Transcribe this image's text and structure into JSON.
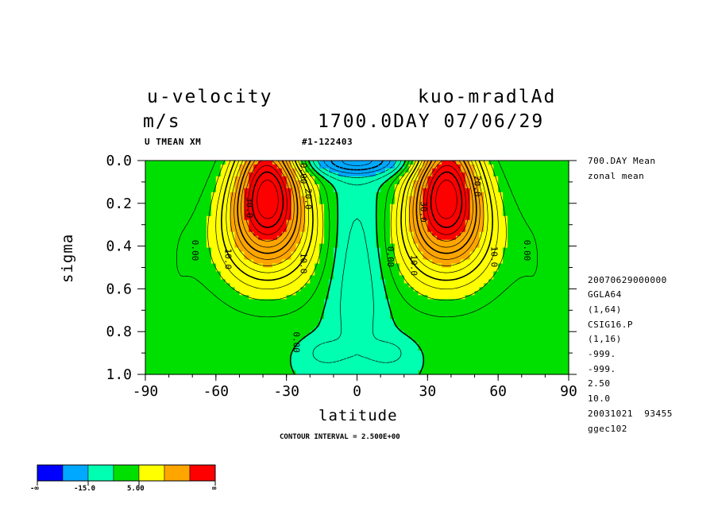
{
  "header": {
    "title_left": "u-velocity",
    "title_right": "kuo-mradlAd",
    "units": "m/s",
    "run_info": "1700.0DAY 07/06/29",
    "var_code": "U TMEAN XM",
    "run_code": "#1-122403"
  },
  "side_info": {
    "lines_top": [
      "700.DAY Mean",
      "zonal mean"
    ],
    "lines_bottom": [
      "20070629000000",
      "GGLA64",
      "(1,64)",
      "CSIG16.P",
      "(1,16)",
      "-999.",
      "-999.",
      "2.50",
      "10.0",
      "20031021  93455",
      "ggec102"
    ]
  },
  "contour_note": "CONTOUR INTERVAL = 2.500E+00",
  "legend": {
    "labels": [
      "-∞",
      "-15.0",
      "5.00",
      "∞"
    ],
    "colors": [
      "#0000ff",
      "#00a8ff",
      "#00ffb0",
      "#00e000",
      "#ffff00",
      "#ffa500",
      "#ff0000"
    ]
  },
  "chart_data": {
    "type": "heatmap",
    "title": "u-velocity",
    "xlabel": "latitude",
    "ylabel": "sigma",
    "xlim": [
      -90,
      90
    ],
    "ylim": [
      1.0,
      0.0
    ],
    "x_ticks": [
      "-90",
      "-60",
      "-30",
      "0",
      "30",
      "60",
      "90"
    ],
    "y_ticks": [
      "0.0",
      "0.2",
      "0.4",
      "0.6",
      "0.8",
      "1.0"
    ],
    "contour_interval": 2.5,
    "jets": [
      {
        "latitude": -38,
        "sigma": 0.18,
        "max_value": 35
      },
      {
        "latitude": 38,
        "sigma": 0.18,
        "max_value": 35
      }
    ],
    "contour_labels": [
      {
        "text": "0.00",
        "latitude": -70,
        "sigma": 0.42
      },
      {
        "text": "10.0",
        "latitude": -56,
        "sigma": 0.46
      },
      {
        "text": "30.0",
        "latitude": -47,
        "sigma": 0.22
      },
      {
        "text": "20.0",
        "latitude": -22,
        "sigma": 0.18
      },
      {
        "text": "0.00",
        "latitude": -24,
        "sigma": 0.06
      },
      {
        "text": "10.0",
        "latitude": -24,
        "sigma": 0.48
      },
      {
        "text": "0.00",
        "latitude": -27,
        "sigma": 0.85
      },
      {
        "text": "0.00",
        "latitude": 13,
        "sigma": 0.45
      },
      {
        "text": "10.0",
        "latitude": 23,
        "sigma": 0.49
      },
      {
        "text": "30.0",
        "latitude": 27,
        "sigma": 0.24
      },
      {
        "text": "20.0",
        "latitude": 50,
        "sigma": 0.12
      },
      {
        "text": "10.0",
        "latitude": 57,
        "sigma": 0.45
      },
      {
        "text": "0.00",
        "latitude": 71,
        "sigma": 0.42
      }
    ]
  }
}
